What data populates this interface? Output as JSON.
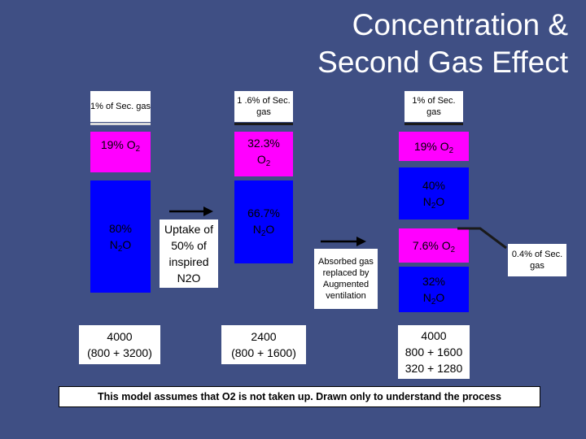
{
  "title_line1": "Concentration &",
  "title_line2": "Second Gas Effect",
  "col1": {
    "sec_gas": "1% of  Sec. gas",
    "o2": "19% O",
    "o2_sub": "2",
    "n2o_pct": "80%",
    "n2o": "N",
    "n2o_sub": "2",
    "n2o_tail": "O",
    "total": "4000",
    "breakdown": "(800 + 3200)"
  },
  "uptake_label": "Uptake of 50% of inspired N2O",
  "col2": {
    "sec_gas": "1 .6% of Sec. gas",
    "o2_pct": "32.3%",
    "o2": "O",
    "o2_sub": "2",
    "n2o_pct": "66.7%",
    "n2o": "N",
    "n2o_sub": "2",
    "n2o_tail": "O",
    "total": "2400",
    "breakdown": "(800 + 1600)"
  },
  "absorbed_label": "Absorbed gas replaced by Augmented ventilation",
  "col3": {
    "sec_gas": "1% of Sec. gas",
    "o2_top": "19% O",
    "o2_top_sub": "2",
    "n2o_top_pct": "40%",
    "n2o_top": "N",
    "n2o_top_sub": "2",
    "n2o_top_tail": "O",
    "o2_bottom": "7.6% O",
    "o2_bottom_sub": "2",
    "n2o_bottom_pct": "32%",
    "n2o_bottom": "N",
    "n2o_bottom_sub": "2",
    "n2o_bottom_tail": "O",
    "total": "4000",
    "line2": "800 + 1600",
    "line3": "320 + 1280"
  },
  "sec_gas_side_label": "0.4% of Sec. gas",
  "note": "This model assumes that O2 is not taken up. Drawn only to understand the process",
  "colors": {
    "background": "#3f4f84",
    "oxygen": "#ff00ff",
    "nitrous_oxide": "#0000ff",
    "second_gas": "#ffffff"
  }
}
